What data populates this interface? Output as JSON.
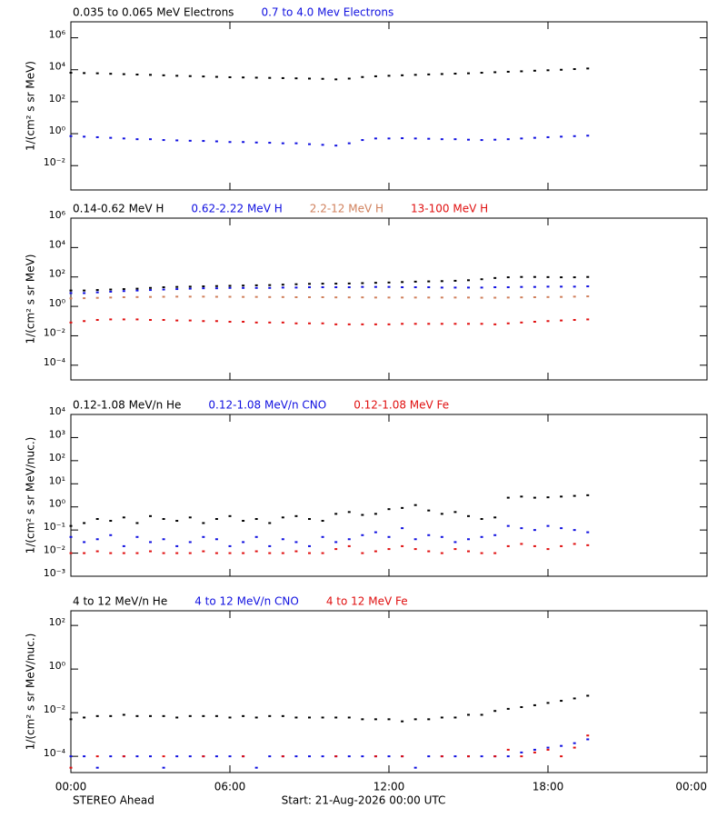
{
  "chart_data": [
    {
      "type": "scatter",
      "ylabel": "1/(cm² s sr MeV)",
      "ylog": true,
      "xlim": [
        0,
        24
      ],
      "ylim": [
        0.0003,
        10000000
      ],
      "yticks": [
        {
          "value": 0.01,
          "label": "10⁻²"
        },
        {
          "value": 1,
          "label": "10⁰"
        },
        {
          "value": 100,
          "label": "10²"
        },
        {
          "value": 10000,
          "label": "10⁴"
        },
        {
          "value": 1000000,
          "label": "10⁶"
        }
      ],
      "x": [
        0,
        0.5,
        1,
        1.5,
        2,
        2.5,
        3,
        3.5,
        4,
        4.5,
        5,
        5.5,
        6,
        6.5,
        7,
        7.5,
        8,
        8.5,
        9,
        9.5,
        10,
        10.5,
        11,
        11.5,
        12,
        12.5,
        13,
        13.5,
        14,
        14.5,
        15,
        15.5,
        16,
        16.5,
        17,
        17.5,
        18,
        18.5,
        19,
        19.5
      ],
      "series": [
        {
          "name": "0.035 to 0.065 MeV Electrons",
          "color": "#000000",
          "values": [
            6500,
            6200,
            6000,
            5600,
            5300,
            5000,
            4800,
            4500,
            4200,
            4000,
            3800,
            3600,
            3400,
            3300,
            3200,
            3100,
            3000,
            2900,
            2800,
            2700,
            2500,
            2800,
            3500,
            3900,
            4200,
            4500,
            4800,
            5100,
            5400,
            5700,
            6000,
            6500,
            7000,
            7500,
            8000,
            8700,
            9300,
            10000,
            11000,
            12000
          ]
        },
        {
          "name": "0.7 to 4.0 Mev Electrons",
          "color": "#1010e0",
          "values": [
            0.7,
            0.65,
            0.6,
            0.55,
            0.5,
            0.45,
            0.45,
            0.4,
            0.38,
            0.36,
            0.35,
            0.33,
            0.3,
            0.3,
            0.28,
            0.27,
            0.25,
            0.25,
            0.22,
            0.2,
            0.18,
            0.25,
            0.4,
            0.5,
            0.5,
            0.52,
            0.5,
            0.48,
            0.45,
            0.45,
            0.42,
            0.4,
            0.42,
            0.45,
            0.5,
            0.55,
            0.6,
            0.65,
            0.7,
            0.75
          ]
        }
      ]
    },
    {
      "type": "scatter",
      "ylabel": "1/(cm² s sr MeV)",
      "ylog": true,
      "xlim": [
        0,
        24
      ],
      "ylim": [
        1e-05,
        1000000
      ],
      "yticks": [
        {
          "value": 0.0001,
          "label": "10⁻⁴"
        },
        {
          "value": 0.01,
          "label": "10⁻²"
        },
        {
          "value": 1,
          "label": "10⁰"
        },
        {
          "value": 100,
          "label": "10²"
        },
        {
          "value": 10000,
          "label": "10⁴"
        },
        {
          "value": 1000000,
          "label": "10⁶"
        }
      ],
      "x": [
        0,
        0.5,
        1,
        1.5,
        2,
        2.5,
        3,
        3.5,
        4,
        4.5,
        5,
        5.5,
        6,
        6.5,
        7,
        7.5,
        8,
        8.5,
        9,
        9.5,
        10,
        10.5,
        11,
        11.5,
        12,
        12.5,
        13,
        13.5,
        14,
        14.5,
        15,
        15.5,
        16,
        16.5,
        17,
        17.5,
        18,
        18.5,
        19,
        19.5
      ],
      "series": [
        {
          "name": "0.14-0.62 MeV H",
          "color": "#000000",
          "values": [
            12,
            12,
            13,
            14,
            15,
            16,
            18,
            20,
            21,
            22,
            23,
            24,
            25,
            26,
            27,
            28,
            30,
            32,
            34,
            35,
            35,
            36,
            38,
            40,
            42,
            45,
            48,
            50,
            52,
            55,
            60,
            70,
            85,
            95,
            100,
            100,
            98,
            95,
            95,
            100
          ]
        },
        {
          "name": "0.62-2.22 MeV H",
          "color": "#1010e0",
          "values": [
            8,
            8,
            9,
            10,
            11,
            12,
            13,
            14,
            15,
            16,
            17,
            17,
            18,
            18,
            18,
            18,
            19,
            19,
            20,
            20,
            20,
            20,
            21,
            21,
            21,
            20,
            20,
            20,
            19,
            19,
            19,
            19,
            20,
            20,
            21,
            21,
            22,
            22,
            22,
            23
          ]
        },
        {
          "name": "2.2-12 MeV H",
          "color": "#d0805c",
          "values": [
            3.5,
            3.6,
            3.8,
            4,
            4.2,
            4.3,
            4.4,
            4.5,
            4.6,
            4.6,
            4.6,
            4.5,
            4.5,
            4.4,
            4.4,
            4.3,
            4.3,
            4.2,
            4.2,
            4.2,
            4.1,
            4.1,
            4.1,
            4,
            4,
            4,
            4,
            4,
            4,
            4,
            4,
            3.9,
            3.9,
            4,
            4.1,
            4.2,
            4.3,
            4.4,
            4.6,
            4.8
          ]
        },
        {
          "name": "13-100 MeV H",
          "color": "#e01010",
          "values": [
            0.08,
            0.1,
            0.12,
            0.13,
            0.13,
            0.13,
            0.12,
            0.12,
            0.11,
            0.11,
            0.1,
            0.1,
            0.09,
            0.09,
            0.08,
            0.08,
            0.08,
            0.07,
            0.07,
            0.07,
            0.06,
            0.06,
            0.06,
            0.06,
            0.06,
            0.065,
            0.065,
            0.065,
            0.065,
            0.065,
            0.065,
            0.065,
            0.06,
            0.07,
            0.08,
            0.09,
            0.1,
            0.11,
            0.12,
            0.13
          ]
        }
      ]
    },
    {
      "type": "scatter",
      "ylabel": "1/(cm² s sr MeV/nuc.)",
      "ylog": true,
      "xlim": [
        0,
        24
      ],
      "ylim": [
        0.001,
        10000
      ],
      "yticks": [
        {
          "value": 0.001,
          "label": "10⁻³"
        },
        {
          "value": 0.01,
          "label": "10⁻²"
        },
        {
          "value": 0.1,
          "label": "10⁻¹"
        },
        {
          "value": 1,
          "label": "10⁰"
        },
        {
          "value": 10,
          "label": "10¹"
        },
        {
          "value": 100,
          "label": "10²"
        },
        {
          "value": 1000,
          "label": "10³"
        },
        {
          "value": 10000,
          "label": "10⁴"
        }
      ],
      "x": [
        0,
        0.5,
        1,
        1.5,
        2,
        2.5,
        3,
        3.5,
        4,
        4.5,
        5,
        5.5,
        6,
        6.5,
        7,
        7.5,
        8,
        8.5,
        9,
        9.5,
        10,
        10.5,
        11,
        11.5,
        12,
        12.5,
        13,
        13.5,
        14,
        14.5,
        15,
        15.5,
        16,
        16.5,
        17,
        17.5,
        18,
        18.5,
        19,
        19.5
      ],
      "series": [
        {
          "name": "0.12-1.08 MeV/n He",
          "color": "#000000",
          "values": [
            0.15,
            0.2,
            0.3,
            0.25,
            0.35,
            0.2,
            0.4,
            0.3,
            0.25,
            0.35,
            0.2,
            0.3,
            0.4,
            0.25,
            0.3,
            0.2,
            0.35,
            0.4,
            0.3,
            0.25,
            0.5,
            0.6,
            0.45,
            0.5,
            0.8,
            0.9,
            1.2,
            0.7,
            0.5,
            0.6,
            0.4,
            0.3,
            0.35,
            2.5,
            2.8,
            2.5,
            2.6,
            2.8,
            3,
            3.2
          ]
        },
        {
          "name": "0.12-1.08 MeV/n CNO",
          "color": "#1010e0",
          "values": [
            0.05,
            0.03,
            0.04,
            0.06,
            0.02,
            0.05,
            0.03,
            0.04,
            0.02,
            0.03,
            0.05,
            0.04,
            0.02,
            0.03,
            0.05,
            0.02,
            0.04,
            0.03,
            0.02,
            0.05,
            0.03,
            0.04,
            0.06,
            0.08,
            0.05,
            0.12,
            0.04,
            0.06,
            0.05,
            0.03,
            0.04,
            0.05,
            0.06,
            0.15,
            0.12,
            0.1,
            0.15,
            0.12,
            0.1,
            0.08
          ]
        },
        {
          "name": "0.12-1.08 MeV Fe",
          "color": "#e01010",
          "values": [
            0.01,
            0.01,
            0.012,
            0.01,
            0.01,
            0.01,
            0.012,
            0.01,
            0.01,
            0.01,
            0.012,
            0.01,
            0.01,
            0.01,
            0.012,
            0.01,
            0.01,
            0.012,
            0.01,
            0.01,
            0.015,
            0.02,
            0.01,
            0.012,
            0.015,
            0.02,
            0.015,
            0.012,
            0.01,
            0.015,
            0.012,
            0.01,
            0.01,
            0.02,
            0.025,
            0.02,
            0.015,
            0.02,
            0.025,
            0.022
          ]
        }
      ]
    },
    {
      "type": "scatter",
      "ylabel": "1/(cm² s sr MeV/nuc.)",
      "ylog": true,
      "xlim": [
        0,
        24
      ],
      "ylim": [
        1.8e-05,
        470
      ],
      "yticks": [
        {
          "value": 0.0001,
          "label": "10⁻⁴"
        },
        {
          "value": 0.01,
          "label": "10⁻²"
        },
        {
          "value": 1,
          "label": "10⁰"
        },
        {
          "value": 100,
          "label": "10²"
        }
      ],
      "xticks": [
        {
          "value": 0,
          "label": "00:00"
        },
        {
          "value": 6,
          "label": "06:00"
        },
        {
          "value": 12,
          "label": "12:00"
        },
        {
          "value": 18,
          "label": "18:00"
        },
        {
          "value": 24,
          "label": "00:00"
        }
      ],
      "x": [
        0,
        0.5,
        1,
        1.5,
        2,
        2.5,
        3,
        3.5,
        4,
        4.5,
        5,
        5.5,
        6,
        6.5,
        7,
        7.5,
        8,
        8.5,
        9,
        9.5,
        10,
        10.5,
        11,
        11.5,
        12,
        12.5,
        13,
        13.5,
        14,
        14.5,
        15,
        15.5,
        16,
        16.5,
        17,
        17.5,
        18,
        18.5,
        19,
        19.5
      ],
      "series": [
        {
          "name": "4 to 12 MeV/n He",
          "color": "#000000",
          "values": [
            0.005,
            0.006,
            0.007,
            0.007,
            0.008,
            0.007,
            0.007,
            0.007,
            0.006,
            0.007,
            0.007,
            0.007,
            0.006,
            0.007,
            0.006,
            0.007,
            0.007,
            0.006,
            0.006,
            0.006,
            0.006,
            0.006,
            0.005,
            0.005,
            0.005,
            0.004,
            0.005,
            0.005,
            0.006,
            0.006,
            0.008,
            0.008,
            0.012,
            0.015,
            0.018,
            0.022,
            0.028,
            0.035,
            0.045,
            0.06
          ]
        },
        {
          "name": "4 to 12 MeV/n CNO",
          "color": "#1010e0",
          "values": [
            0.0001,
            0.0001,
            3e-05,
            0.0001,
            0.0001,
            0.0001,
            0.0001,
            3e-05,
            0.0001,
            0.0001,
            0.0001,
            0.0001,
            0.0001,
            0.0001,
            3e-05,
            0.0001,
            0.0001,
            0.0001,
            0.0001,
            0.0001,
            0.0001,
            0.0001,
            0.0001,
            0.0001,
            0.0001,
            0.0001,
            3e-05,
            0.0001,
            0.0001,
            0.0001,
            0.0001,
            0.0001,
            0.0001,
            0.0001,
            0.00015,
            0.0002,
            0.00025,
            0.0003,
            0.0004,
            0.0006
          ]
        },
        {
          "name": "4 to 12 MeV Fe",
          "color": "#e01010",
          "values": [
            3e-05,
            null,
            0.0001,
            null,
            0.0001,
            null,
            null,
            0.0001,
            null,
            null,
            0.0001,
            null,
            null,
            0.0001,
            null,
            null,
            0.0001,
            null,
            null,
            null,
            0.0001,
            null,
            null,
            0.0001,
            null,
            0.0001,
            null,
            null,
            0.0001,
            null,
            0.0001,
            null,
            0.0001,
            0.0002,
            0.0001,
            0.00015,
            0.0002,
            0.0001,
            0.00025,
            0.0009
          ]
        }
      ]
    }
  ],
  "footer": {
    "left": "STEREO Ahead",
    "center": "Start: 21-Aug-2026 00:00 UTC"
  }
}
